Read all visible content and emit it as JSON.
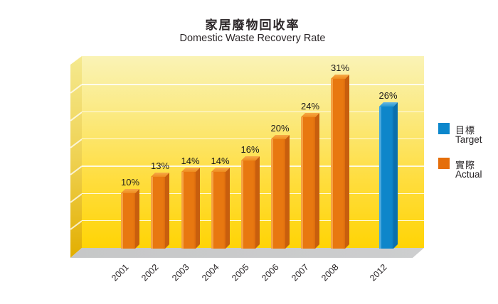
{
  "title": {
    "zh": "家居廢物回收率",
    "en": "Domestic Waste Recovery Rate"
  },
  "legend": {
    "items": [
      {
        "key": "target",
        "label_zh": "目標",
        "label_en": "Target",
        "color": "#0c87cc"
      },
      {
        "key": "actual",
        "label_zh": "實際",
        "label_en": "Actual",
        "color": "#e56e0a"
      }
    ]
  },
  "colors": {
    "actual_front": "#e87810",
    "actual_front_dark": "#dd6c0c",
    "actual_highlight": "#f5a243",
    "actual_side": "#c75e0e",
    "actual_top": "#ee8c1e",
    "actual_top_light": "#f7a947",
    "target_front": "#0e86ca",
    "target_front_dark": "#0c79ba",
    "target_highlight": "#4ba8dc",
    "target_side": "#0a6fac",
    "target_top": "#2497d1",
    "target_top_light": "#66b7e2",
    "wall_top": "#faf3b6",
    "wall_bottom": "#ffd405",
    "floor": "#c9cacb",
    "gridline": "#ffffff"
  },
  "chart_data": {
    "type": "bar",
    "title": "家居廢物回收率",
    "subtitle": "Domestic Waste Recovery Rate",
    "categories": [
      "2001",
      "2002",
      "2003",
      "2004",
      "2005",
      "2006",
      "2007",
      "2008",
      "2012"
    ],
    "series": [
      {
        "name": "實際 Actual",
        "key": "actual",
        "color": "#e87810",
        "values": [
          10,
          13,
          14,
          14,
          16,
          20,
          24,
          31,
          null
        ]
      },
      {
        "name": "目標 Target",
        "key": "target",
        "color": "#0e86ca",
        "values": [
          null,
          null,
          null,
          null,
          null,
          null,
          null,
          null,
          26
        ]
      }
    ],
    "bars": [
      {
        "category": "2001",
        "value": 10,
        "label": "10%",
        "series": "actual"
      },
      {
        "category": "2002",
        "value": 13,
        "label": "13%",
        "series": "actual"
      },
      {
        "category": "2003",
        "value": 14,
        "label": "14%",
        "series": "actual"
      },
      {
        "category": "2004",
        "value": 14,
        "label": "14%",
        "series": "actual"
      },
      {
        "category": "2005",
        "value": 16,
        "label": "16%",
        "series": "actual"
      },
      {
        "category": "2006",
        "value": 20,
        "label": "20%",
        "series": "actual"
      },
      {
        "category": "2007",
        "value": 24,
        "label": "24%",
        "series": "actual"
      },
      {
        "category": "2008",
        "value": 31,
        "label": "31%",
        "series": "actual"
      },
      {
        "category": "2012",
        "value": 26,
        "label": "26%",
        "series": "target"
      }
    ],
    "unit": "%",
    "ylim": [
      0,
      35
    ],
    "gridline_step": 5,
    "grid": "on",
    "legend_position": "right",
    "style": "3d-bars, yellow gradient back wall, gray floor"
  }
}
